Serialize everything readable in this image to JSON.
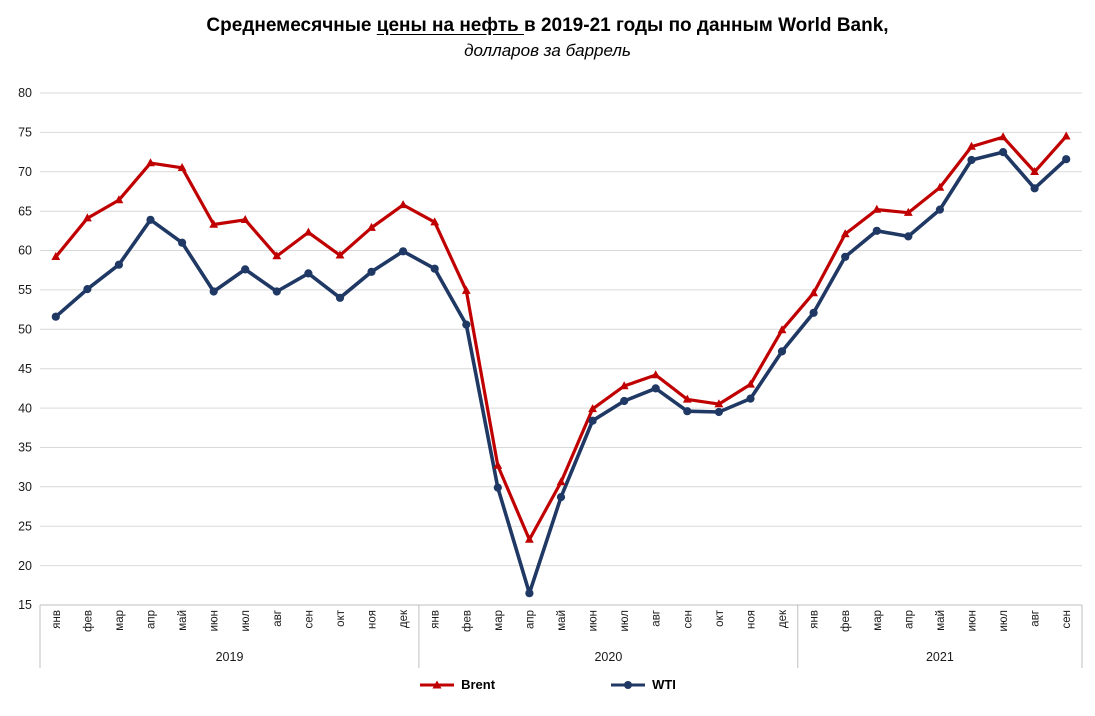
{
  "title": {
    "prefix": "Среднемесячные ",
    "underlined": "цены на нефть ",
    "suffix": "в 2019-21 годы по данным World Bank,",
    "subtitle": "долларов за баррель"
  },
  "legend": {
    "brent": "Brent",
    "wti": "WTI"
  },
  "chart_data": {
    "type": "line",
    "x_groups": [
      {
        "year": "2019",
        "months": [
          "янв",
          "фев",
          "мар",
          "апр",
          "май",
          "июн",
          "июл",
          "авг",
          "сен",
          "окт",
          "ноя",
          "дек"
        ]
      },
      {
        "year": "2020",
        "months": [
          "янв",
          "фев",
          "мар",
          "апр",
          "май",
          "июн",
          "июл",
          "авг",
          "сен",
          "окт",
          "ноя",
          "дек"
        ]
      },
      {
        "year": "2021",
        "months": [
          "янв",
          "фев",
          "мар",
          "апр",
          "май",
          "июн",
          "июл",
          "авг",
          "сен"
        ]
      }
    ],
    "series": [
      {
        "name": "Brent",
        "color": "#C00000",
        "marker": "triangle",
        "values": [
          59.2,
          64.1,
          66.4,
          71.1,
          70.5,
          63.3,
          63.9,
          59.3,
          62.3,
          59.4,
          62.9,
          65.8,
          63.6,
          54.9,
          32.7,
          23.3,
          30.6,
          39.9,
          42.8,
          44.2,
          41.1,
          40.5,
          43.0,
          49.9,
          54.6,
          62.1,
          65.2,
          64.8,
          68.0,
          73.2,
          74.4,
          70.0,
          74.5
        ]
      },
      {
        "name": "WTI",
        "color": "#1F3864",
        "marker": "circle",
        "values": [
          51.6,
          55.1,
          58.2,
          63.9,
          61.0,
          54.8,
          57.6,
          54.8,
          57.1,
          54.0,
          57.3,
          59.9,
          57.7,
          50.6,
          29.9,
          16.5,
          28.7,
          38.4,
          40.9,
          42.5,
          39.6,
          39.5,
          41.2,
          47.2,
          52.1,
          59.2,
          62.5,
          61.8,
          65.2,
          71.5,
          72.5,
          67.9,
          71.6
        ]
      }
    ],
    "ylim": [
      15,
      80
    ],
    "ytick_step": 5,
    "grid": true,
    "grid_color": "#D9D9D9",
    "axis_color": "#BFBFBF",
    "tick_label_color": "#1a1a1a",
    "legend_position": "bottom"
  }
}
